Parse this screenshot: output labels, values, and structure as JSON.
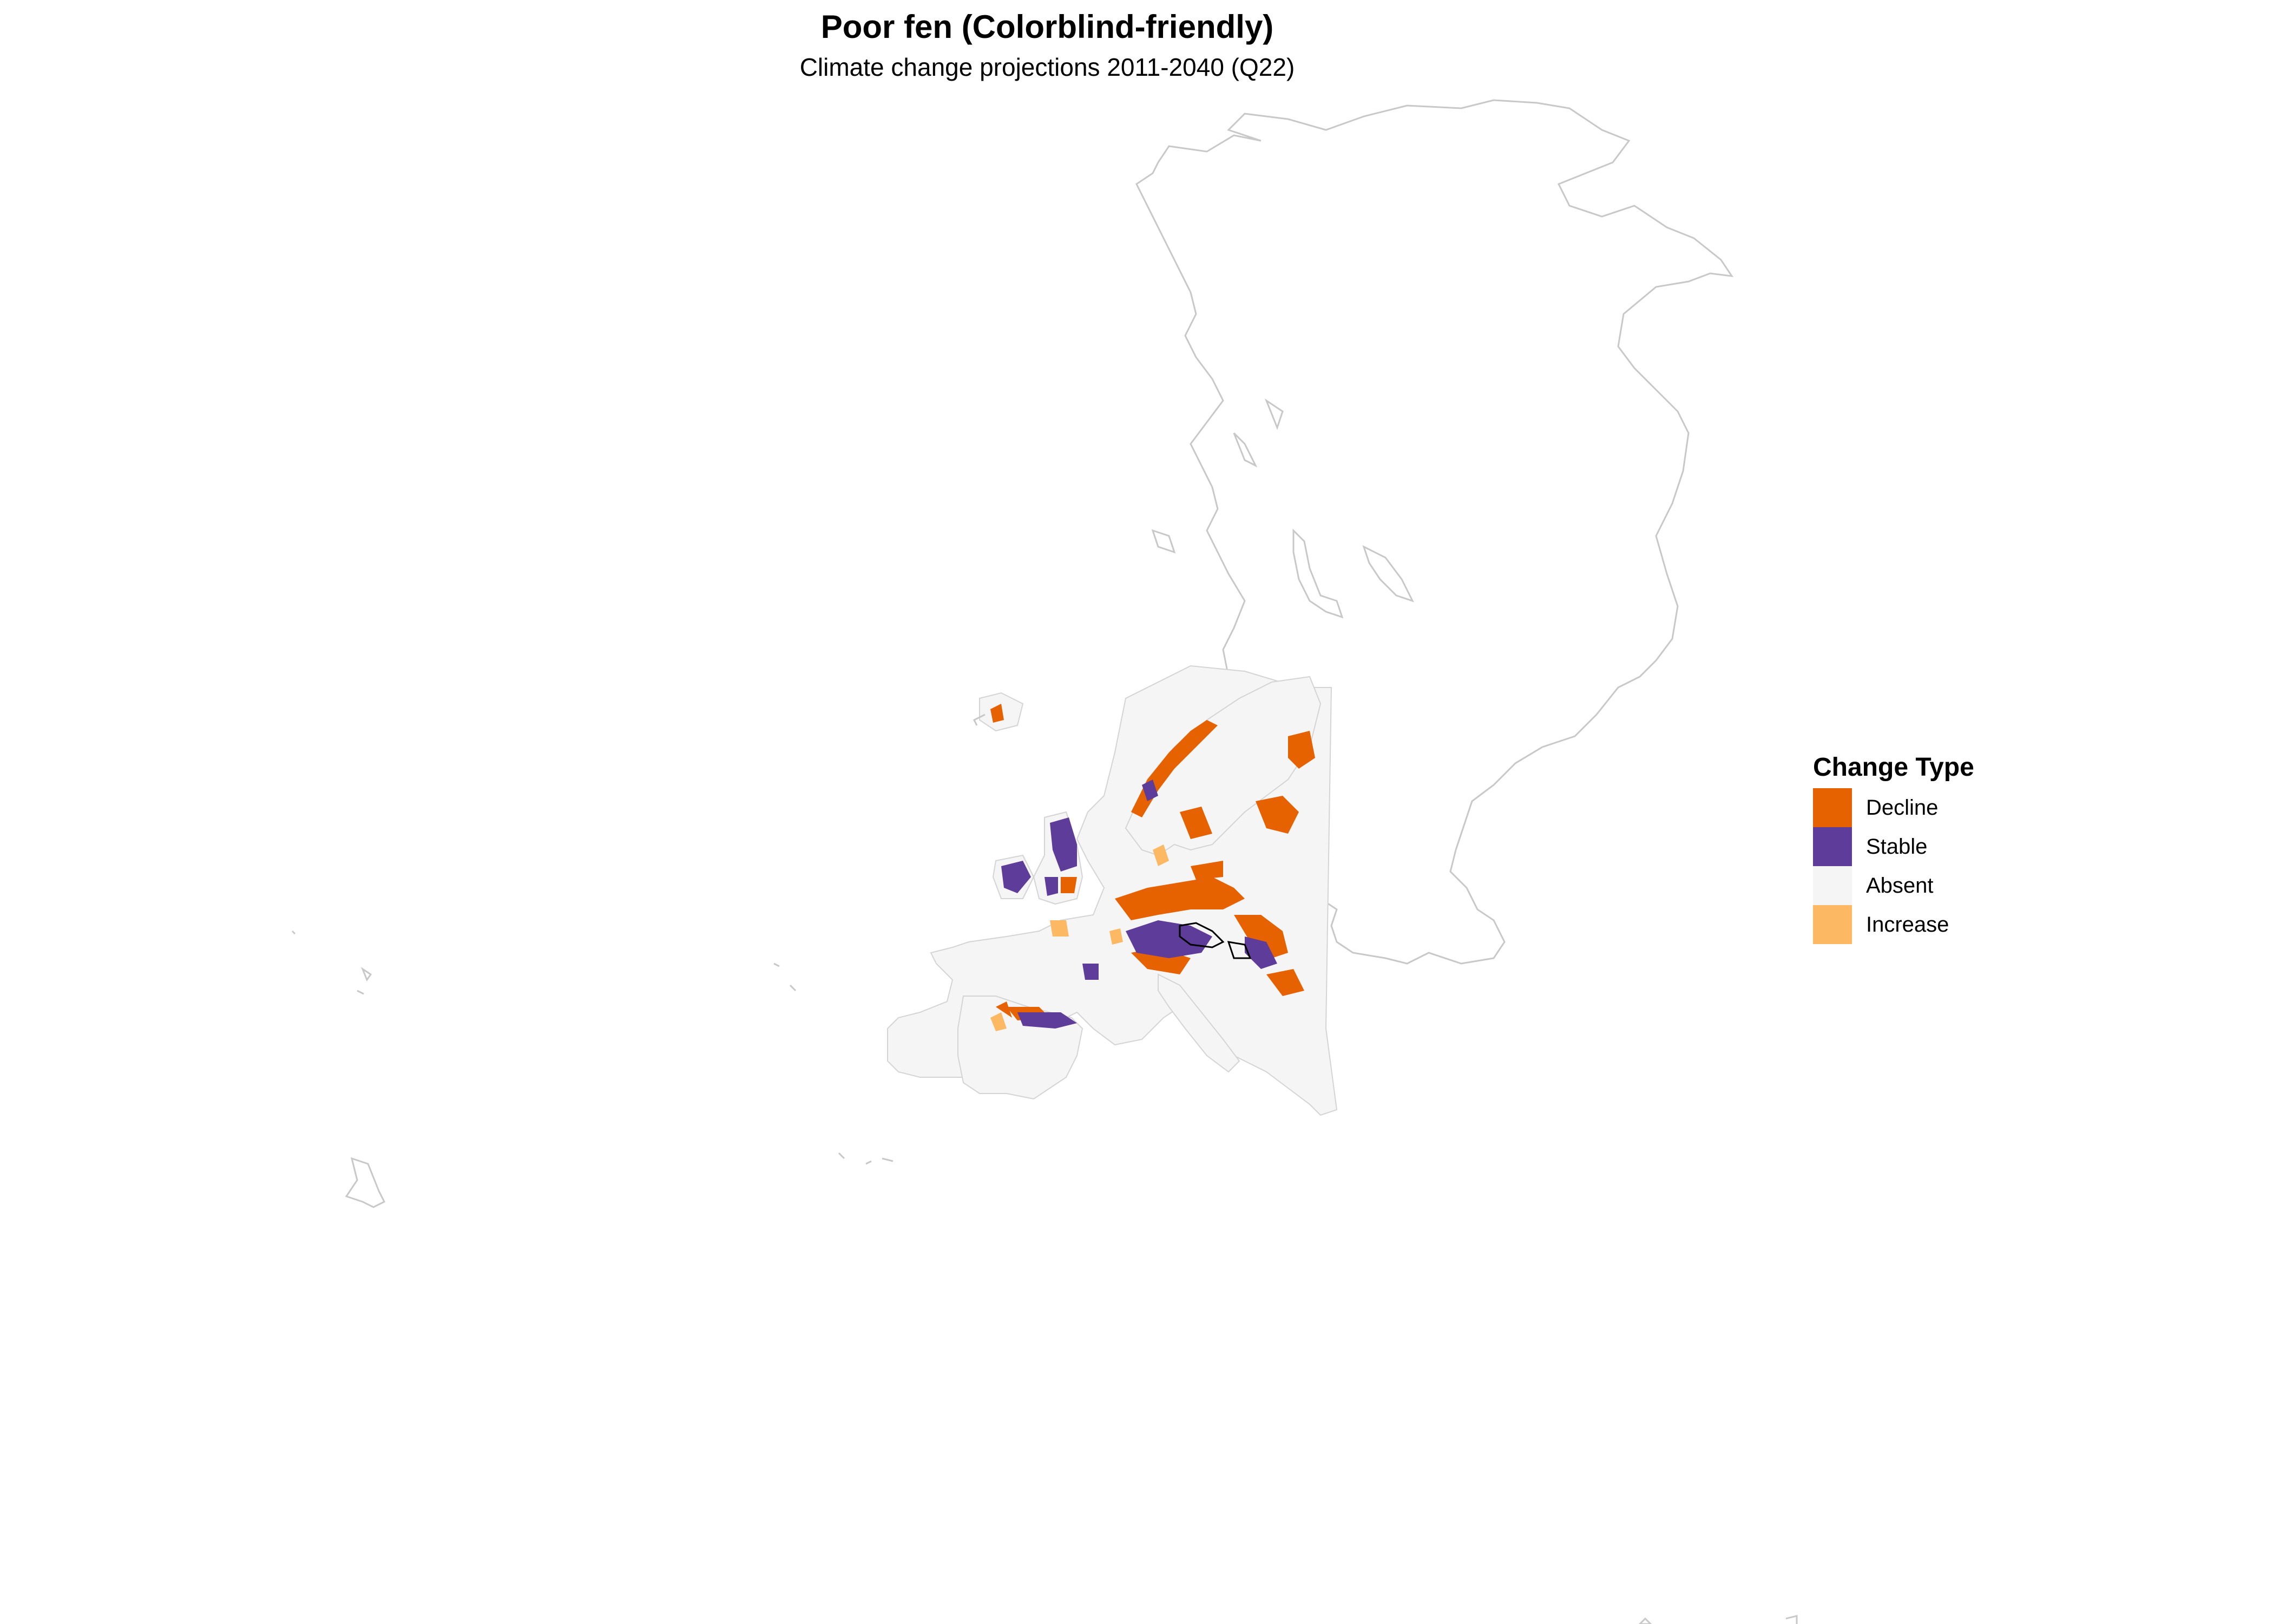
{
  "map": {
    "title": "Poor fen (Colorblind-friendly)",
    "subtitle": "Climate change projections 2011-2040 (Q22)"
  },
  "legend": {
    "title": "Change Type",
    "items": [
      {
        "label": "Decline",
        "color": "#E66100"
      },
      {
        "label": "Stable",
        "color": "#5E3C99"
      },
      {
        "label": "Absent",
        "color": "#F5F5F5"
      },
      {
        "label": "Increase",
        "color": "#FDB863"
      }
    ]
  },
  "colors": {
    "outline": "#c8c8c8",
    "absent_land": "#F5F5F5"
  }
}
